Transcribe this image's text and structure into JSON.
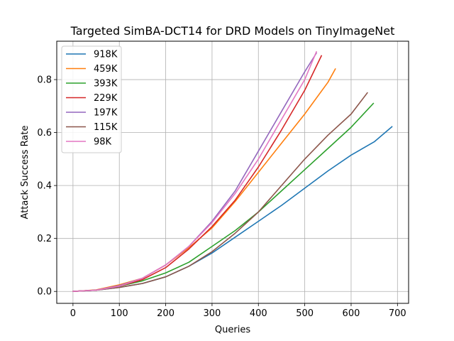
{
  "chart_data": {
    "type": "line",
    "title": "Targeted SimBA-DCT14 for DRD Models on TinyImageNet",
    "xlabel": "Queries",
    "ylabel": "Attack Success Rate",
    "xlim": [
      -35,
      724
    ],
    "ylim": [
      -0.045,
      0.945
    ],
    "xticks": [
      0,
      100,
      200,
      300,
      400,
      500,
      600,
      700
    ],
    "yticks": [
      0.0,
      0.2,
      0.4,
      0.6,
      0.8
    ],
    "grid": true,
    "legend_position": "upper-left",
    "series": [
      {
        "name": "918K",
        "color": "#1f77b4",
        "points": [
          [
            0,
            0
          ],
          [
            50,
            0.005
          ],
          [
            100,
            0.015
          ],
          [
            150,
            0.03
          ],
          [
            200,
            0.055
          ],
          [
            250,
            0.095
          ],
          [
            300,
            0.145
          ],
          [
            350,
            0.205
          ],
          [
            400,
            0.265
          ],
          [
            450,
            0.325
          ],
          [
            500,
            0.39
          ],
          [
            550,
            0.455
          ],
          [
            600,
            0.515
          ],
          [
            650,
            0.565
          ],
          [
            688,
            0.622
          ]
        ]
      },
      {
        "name": "459K",
        "color": "#ff7f0e",
        "points": [
          [
            0,
            0
          ],
          [
            50,
            0.006
          ],
          [
            100,
            0.025
          ],
          [
            150,
            0.05
          ],
          [
            200,
            0.1
          ],
          [
            250,
            0.165
          ],
          [
            300,
            0.24
          ],
          [
            350,
            0.34
          ],
          [
            400,
            0.45
          ],
          [
            450,
            0.56
          ],
          [
            500,
            0.67
          ],
          [
            550,
            0.79
          ],
          [
            566,
            0.84
          ]
        ]
      },
      {
        "name": "393K",
        "color": "#2ca02c",
        "points": [
          [
            0,
            0
          ],
          [
            50,
            0.005
          ],
          [
            100,
            0.02
          ],
          [
            150,
            0.04
          ],
          [
            200,
            0.07
          ],
          [
            250,
            0.11
          ],
          [
            300,
            0.17
          ],
          [
            350,
            0.23
          ],
          [
            400,
            0.3
          ],
          [
            450,
            0.38
          ],
          [
            500,
            0.46
          ],
          [
            550,
            0.54
          ],
          [
            600,
            0.62
          ],
          [
            648,
            0.71
          ]
        ]
      },
      {
        "name": "229K",
        "color": "#d62728",
        "points": [
          [
            0,
            0
          ],
          [
            50,
            0.005
          ],
          [
            100,
            0.02
          ],
          [
            150,
            0.045
          ],
          [
            200,
            0.09
          ],
          [
            250,
            0.16
          ],
          [
            300,
            0.245
          ],
          [
            350,
            0.345
          ],
          [
            400,
            0.47
          ],
          [
            450,
            0.61
          ],
          [
            500,
            0.76
          ],
          [
            536,
            0.89
          ]
        ]
      },
      {
        "name": "197K",
        "color": "#9467bd",
        "points": [
          [
            0,
            0
          ],
          [
            50,
            0.005
          ],
          [
            100,
            0.022
          ],
          [
            150,
            0.05
          ],
          [
            200,
            0.1
          ],
          [
            250,
            0.17
          ],
          [
            300,
            0.265
          ],
          [
            350,
            0.38
          ],
          [
            400,
            0.53
          ],
          [
            450,
            0.68
          ],
          [
            500,
            0.83
          ],
          [
            525,
            0.9
          ]
        ]
      },
      {
        "name": "115K",
        "color": "#8c564b",
        "points": [
          [
            0,
            0
          ],
          [
            50,
            0.005
          ],
          [
            100,
            0.015
          ],
          [
            150,
            0.03
          ],
          [
            200,
            0.055
          ],
          [
            250,
            0.095
          ],
          [
            300,
            0.15
          ],
          [
            350,
            0.22
          ],
          [
            400,
            0.3
          ],
          [
            450,
            0.4
          ],
          [
            500,
            0.5
          ],
          [
            550,
            0.59
          ],
          [
            600,
            0.67
          ],
          [
            635,
            0.75
          ]
        ]
      },
      {
        "name": "98K",
        "color": "#e377c2",
        "points": [
          [
            0,
            0
          ],
          [
            50,
            0.005
          ],
          [
            100,
            0.02
          ],
          [
            150,
            0.05
          ],
          [
            200,
            0.1
          ],
          [
            250,
            0.17
          ],
          [
            300,
            0.26
          ],
          [
            350,
            0.37
          ],
          [
            400,
            0.5
          ],
          [
            450,
            0.65
          ],
          [
            500,
            0.8
          ],
          [
            525,
            0.905
          ]
        ]
      }
    ]
  }
}
